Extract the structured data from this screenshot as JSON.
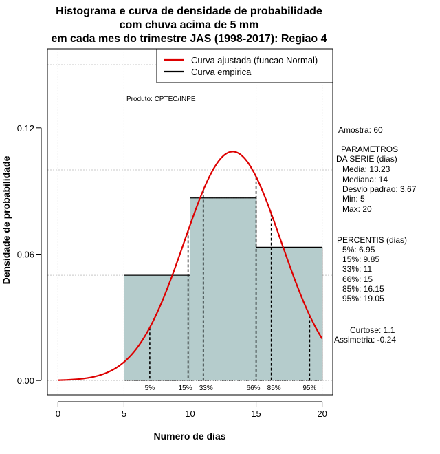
{
  "chart_data": {
    "type": "histogram",
    "title": [
      "Histograma e curva de densidade de probabilidade",
      "com chuva acima de 5 mm",
      "em cada mes do trimestre JAS (1998-2017): Regiao 4"
    ],
    "xlabel": "Numero de dias",
    "ylabel": "Densidade de probabilidade",
    "xlim": [
      -0.8,
      20.8
    ],
    "ylim": [
      -0.0068,
      0.1575
    ],
    "xticks": [
      0,
      5,
      10,
      15,
      20
    ],
    "yticks": [
      0.0,
      0.06,
      0.12
    ],
    "ytick_labels": [
      "0.00",
      "0.06",
      "0.12"
    ],
    "xgrid": [
      0,
      5,
      10,
      15,
      20
    ],
    "ygrid": [
      0.0,
      0.05,
      0.1,
      0.15
    ],
    "bins": [
      {
        "x0": 5,
        "x1": 10,
        "density": 0.05
      },
      {
        "x0": 10,
        "x1": 15,
        "density": 0.0867
      },
      {
        "x0": 15,
        "x1": 20,
        "density": 0.0633
      }
    ],
    "bar_color": "#b5cccc",
    "normal_curve": {
      "mean": 13.23,
      "sd": 3.67,
      "x_from": 0,
      "x_to": 20,
      "color": "#dd0000"
    },
    "percentile_lines": [
      {
        "label": "5%",
        "x": 6.95
      },
      {
        "label": "15%",
        "x": 9.85
      },
      {
        "label": "33%",
        "x": 11
      },
      {
        "label": "66%",
        "x": 15
      },
      {
        "label": "85%",
        "x": 16.15
      },
      {
        "label": "95%",
        "x": 19.05
      }
    ],
    "percentile_label_text": [
      "5%",
      "15%",
      "33%",
      "66%",
      "85%",
      "95%"
    ],
    "legend": [
      {
        "label": "Curva ajustada (funcao Normal)",
        "color": "#dd0000"
      },
      {
        "label": "Curva empirica",
        "color": "#000000"
      }
    ],
    "product_note": "Produto: CPTEC/INPE",
    "stats": {
      "amostra": "Amostra: 60",
      "param_title_1": "PARAMETROS",
      "param_title_2": "DA SERIE (dias)",
      "media": "Media: 13.23",
      "mediana": "Mediana: 14",
      "desvio": "Desvio padrao: 3.67",
      "min": "Min: 5",
      "max": "Max: 20",
      "perc_title": "PERCENTIS (dias)",
      "p5": "5%: 6.95",
      "p15": "15%: 9.85",
      "p33": "33%: 11",
      "p66": "66%: 15",
      "p85": "85%: 16.15",
      "p95": "95%: 19.05",
      "curtose": "Curtose: 1.1",
      "assimetria": "Assimetria: -0.24"
    }
  }
}
